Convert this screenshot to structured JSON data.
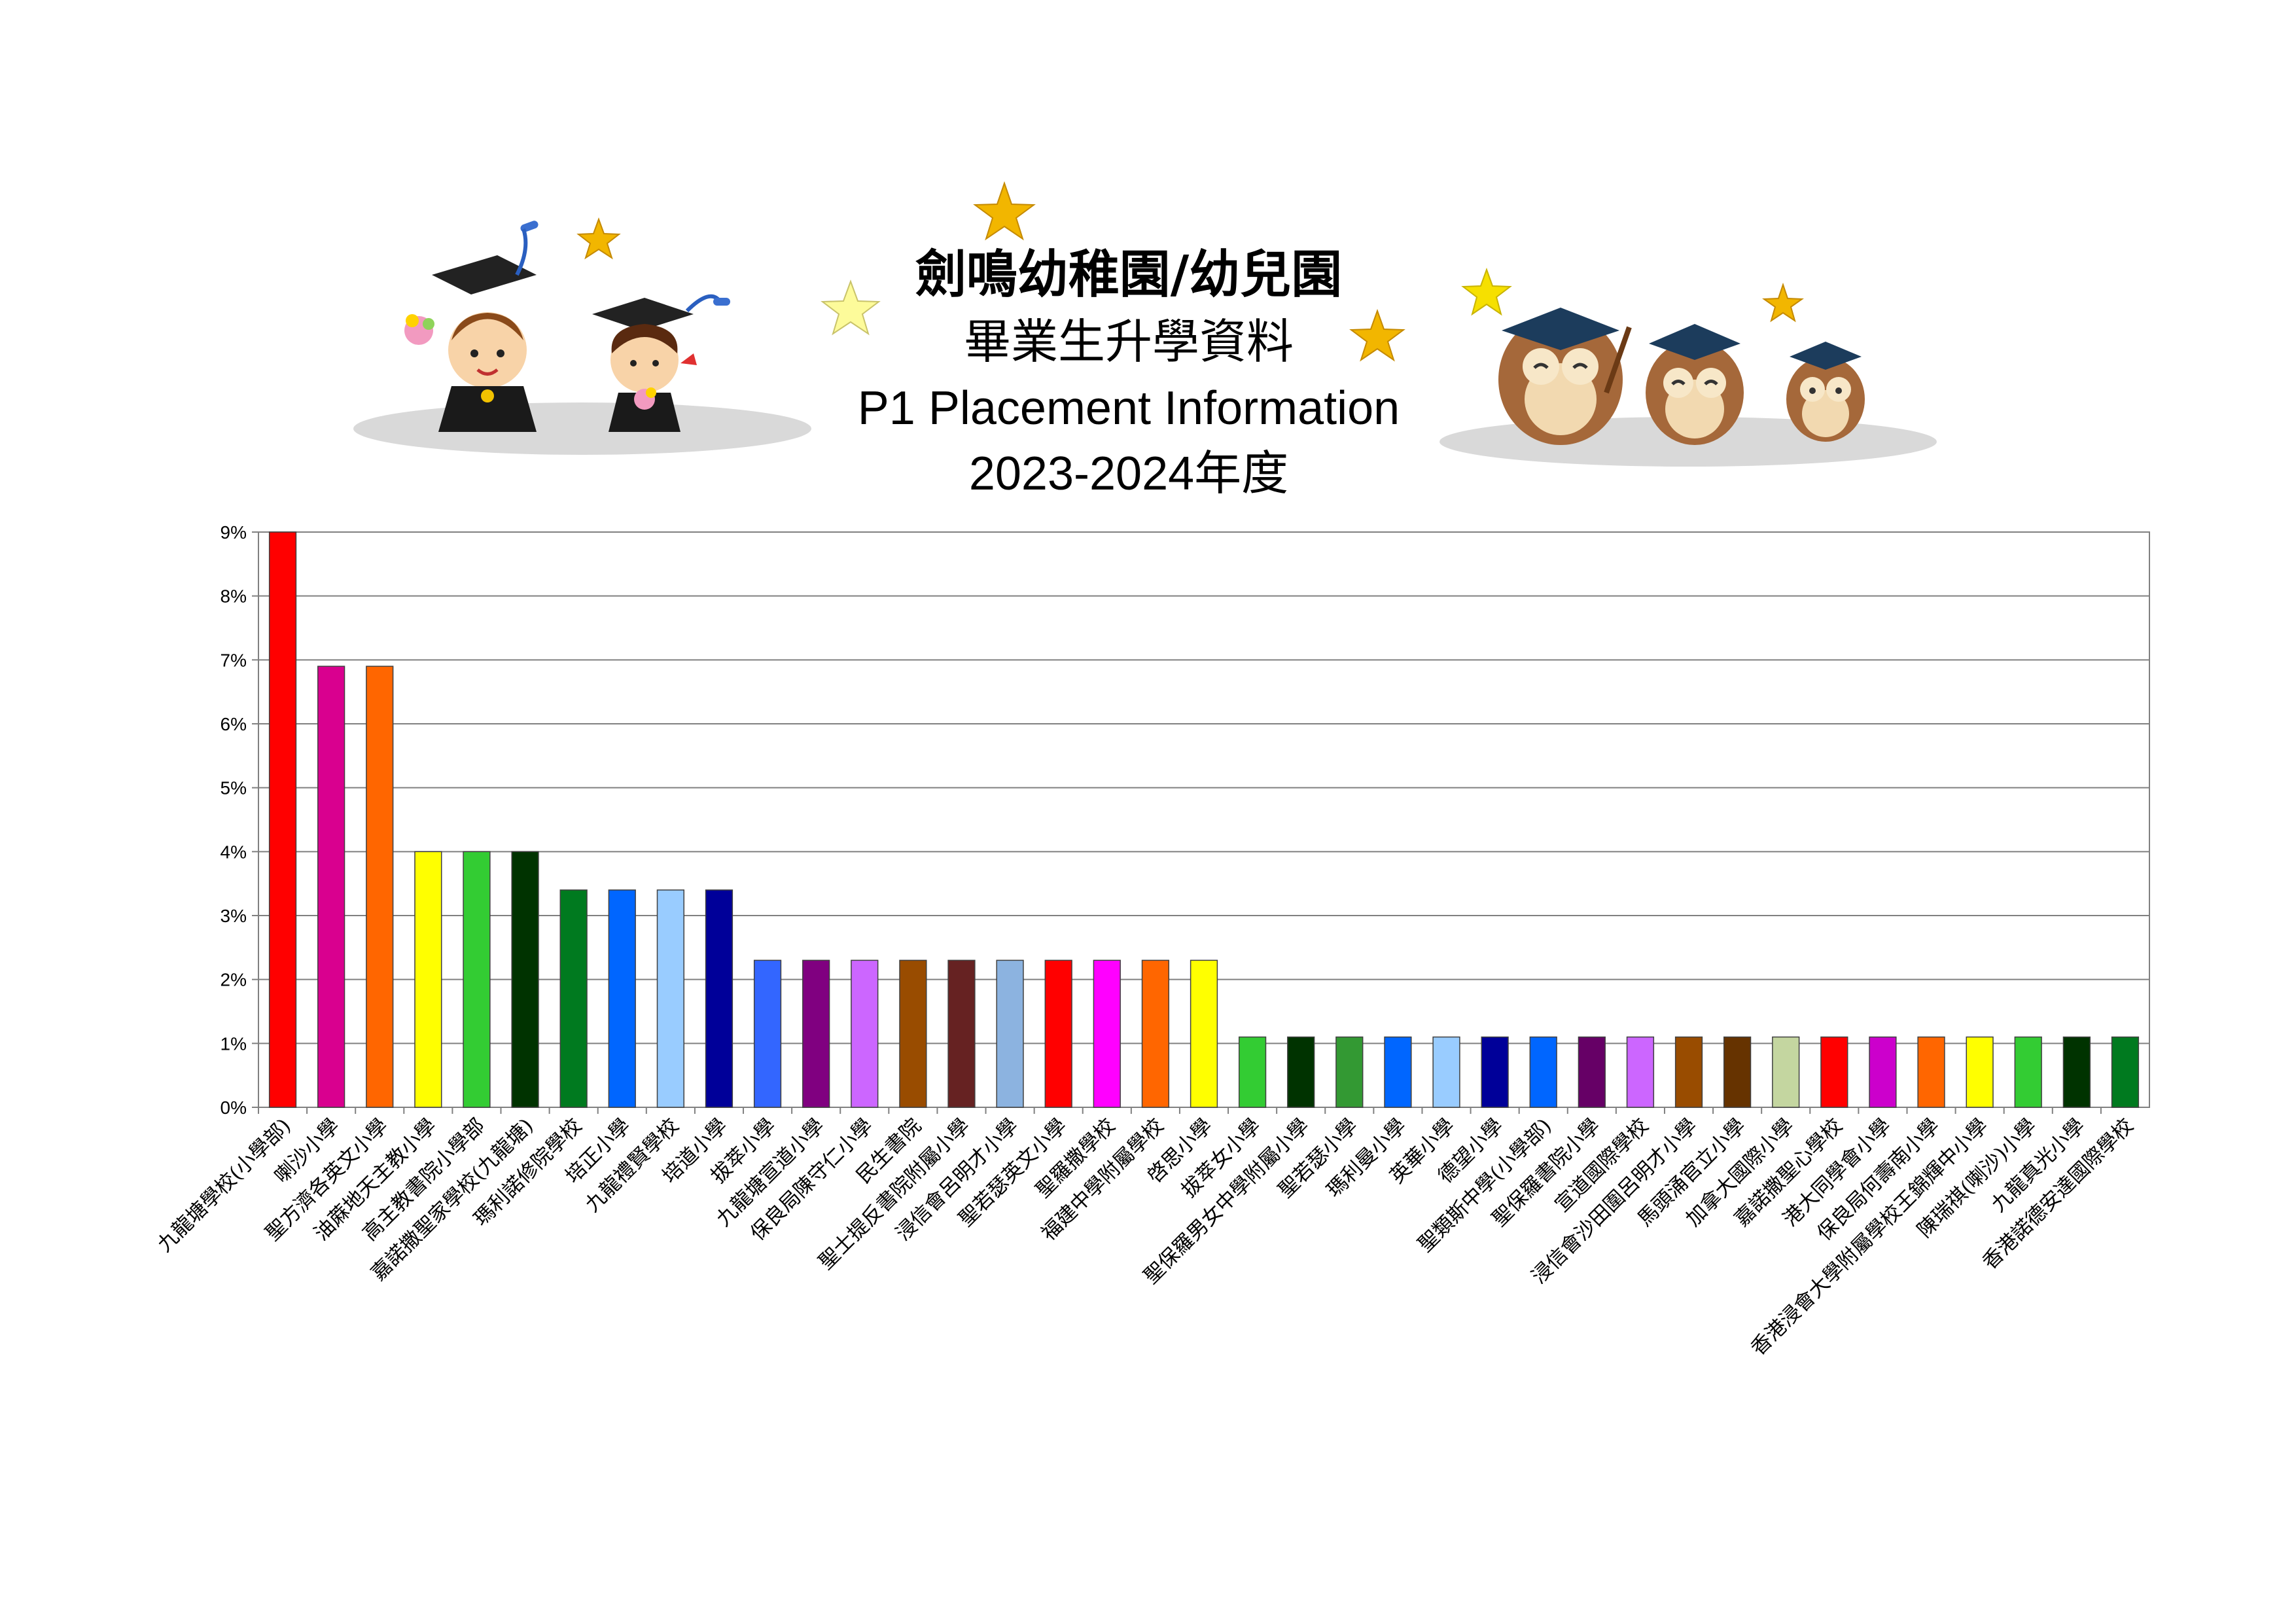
{
  "header": {
    "title_zh": "劍鳴幼稚園/幼兒園",
    "subtitle_zh": "畢業生升學資料",
    "subtitle_en": "P1 Placement Information",
    "year": "2023-2024年度"
  },
  "chart_data": {
    "type": "bar",
    "ylim": [
      0,
      9
    ],
    "y_ticks": [
      "0%",
      "1%",
      "2%",
      "3%",
      "4%",
      "5%",
      "6%",
      "7%",
      "8%",
      "9%"
    ],
    "grid": true,
    "legend": "none",
    "categories": [
      "九龍塘學校(小學部)",
      "喇沙小學",
      "聖方濟各英文小學",
      "油蔴地天主教小學",
      "高主教書院小學部",
      "嘉諾撒聖家學校(九龍塘)",
      "瑪利諾修院學校",
      "培正小學",
      "九龍禮賢學校",
      "培道小學",
      "拔萃小學",
      "九龍塘宣道小學",
      "保良局陳守仁小學",
      "民生書院",
      "聖士提反書院附屬小學",
      "浸信會呂明才小學",
      "聖若瑟英文小學",
      "聖羅撒學校",
      "福建中學附屬學校",
      "啓思小學",
      "拔萃女小學",
      "聖保羅男女中學附屬小學",
      "聖若瑟小學",
      "瑪利曼小學",
      "英華小學",
      "德望小學",
      "聖類斯中學(小學部)",
      "聖保羅書院小學",
      "宣道國際學校",
      "浸信會沙田圍呂明才小學",
      "馬頭涌官立小學",
      "加拿大國際小學",
      "嘉諾撒聖心學校",
      "港大同學會小學",
      "保良局何壽南小學",
      "香港浸會大學附屬學校王錦輝中小學",
      "陳瑞祺(喇沙)小學",
      "九龍真光小學",
      "香港諾德安達國際學校"
    ],
    "values": [
      9.0,
      6.9,
      6.9,
      4.0,
      4.0,
      4.0,
      3.4,
      3.4,
      3.4,
      3.4,
      2.3,
      2.3,
      2.3,
      2.3,
      2.3,
      2.3,
      2.3,
      2.3,
      2.3,
      2.3,
      1.1,
      1.1,
      1.1,
      1.1,
      1.1,
      1.1,
      1.1,
      1.1,
      1.1,
      1.1,
      1.1,
      1.1,
      1.1,
      1.1,
      1.1,
      1.1,
      1.1,
      1.1,
      1.1
    ],
    "colors": [
      "#ff0000",
      "#d9008f",
      "#ff6600",
      "#ffff00",
      "#33cc33",
      "#003300",
      "#007a1f",
      "#0066ff",
      "#99ccff",
      "#000099",
      "#3366ff",
      "#800080",
      "#cc66ff",
      "#994c00",
      "#662222",
      "#8cb3e0",
      "#ff0000",
      "#ff00ff",
      "#ff6600",
      "#ffff00",
      "#33cc33",
      "#003300",
      "#339933",
      "#0066ff",
      "#99ccff",
      "#000099",
      "#0066ff",
      "#660066",
      "#cc66ff",
      "#994c00",
      "#663300",
      "#c4d6a0",
      "#ff0000",
      "#cc00cc",
      "#ff6600",
      "#ffff00",
      "#33cc33",
      "#003300",
      "#007a1f"
    ]
  }
}
